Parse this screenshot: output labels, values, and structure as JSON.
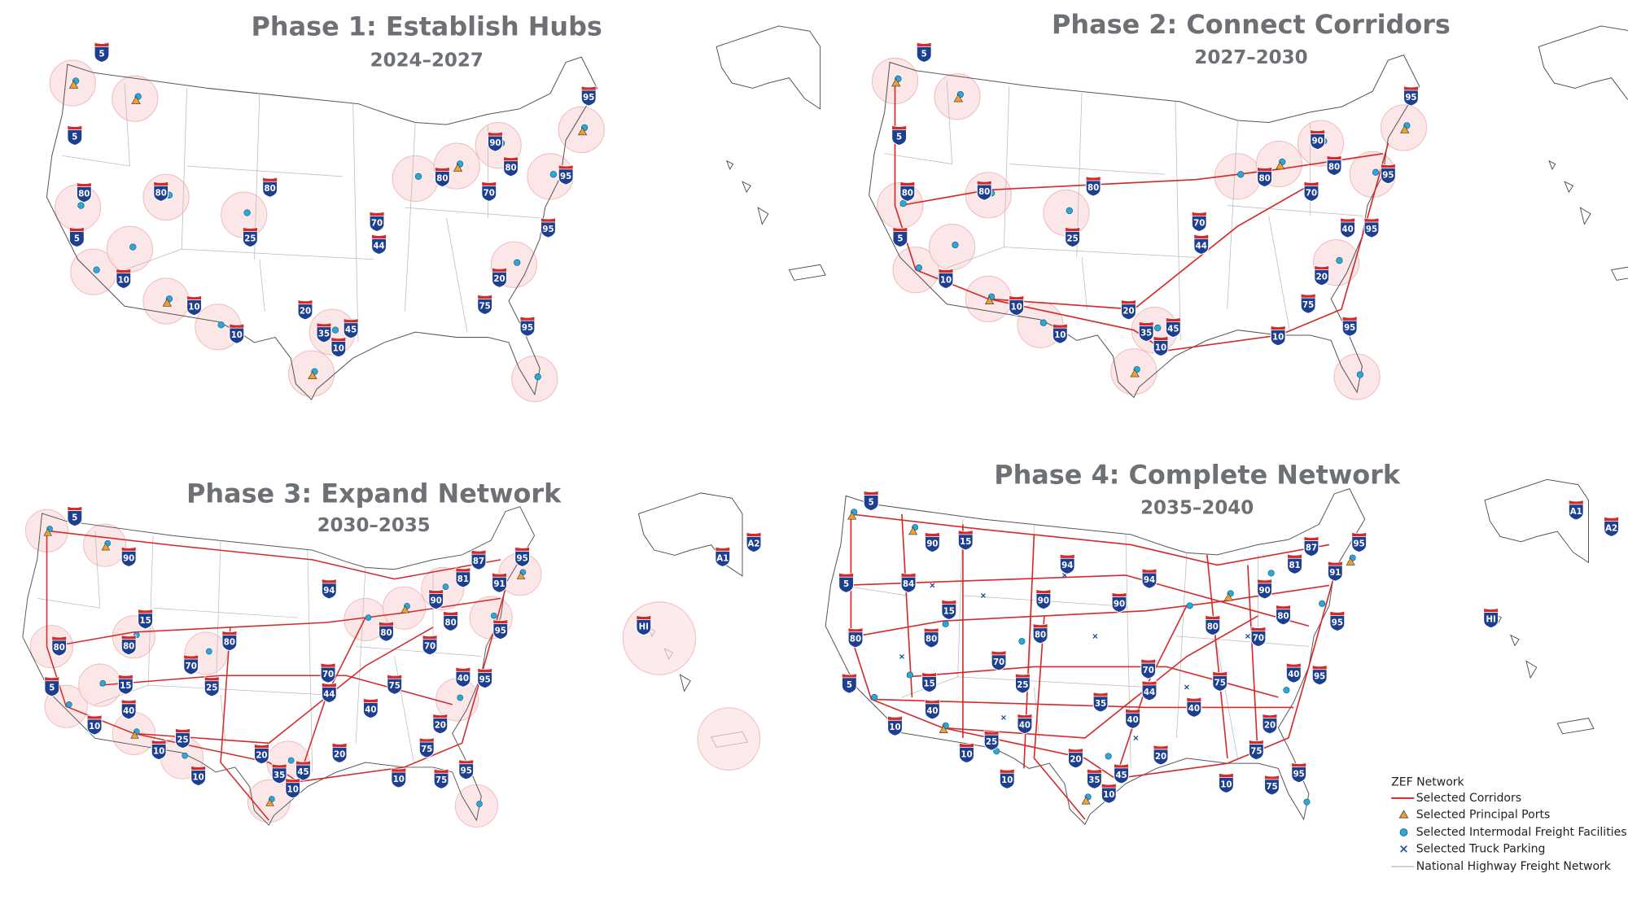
{
  "phases": [
    {
      "title": "Phase 1: Establish Hubs",
      "years": "2024–2027",
      "shields": [
        "5",
        "5",
        "95",
        "90",
        "80",
        "80",
        "70",
        "95",
        "80",
        "80",
        "80",
        "5",
        "25",
        "70",
        "44",
        "95",
        "10",
        "20",
        "10",
        "75",
        "95",
        "10",
        "20",
        "35",
        "45",
        "10"
      ]
    },
    {
      "title": "Phase 2: Connect Corridors",
      "years": "2027–2030",
      "shields": [
        "5",
        "95",
        "5",
        "90",
        "80",
        "80",
        "70",
        "95",
        "80",
        "80",
        "80",
        "5",
        "25",
        "70",
        "44",
        "40",
        "95",
        "10",
        "20",
        "10",
        "75",
        "95",
        "10",
        "20",
        "35",
        "45",
        "10",
        "10"
      ]
    },
    {
      "title": "Phase 3: Expand Network",
      "years": "2030–2035",
      "shields": [
        "5",
        "90",
        "87",
        "95",
        "81",
        "91",
        "94",
        "90",
        "80",
        "95",
        "15",
        "80",
        "80",
        "80",
        "70",
        "70",
        "80",
        "70",
        "5",
        "15",
        "25",
        "44",
        "75",
        "40",
        "40",
        "40",
        "95",
        "10",
        "20",
        "25",
        "10",
        "75",
        "20",
        "20",
        "35",
        "45",
        "10",
        "10",
        "95",
        "10",
        "75",
        "A1",
        "A2",
        "HI"
      ]
    },
    {
      "title": "Phase 4: Complete Network",
      "years": "2035–2040",
      "shields": [
        "5",
        "90",
        "15",
        "94",
        "87",
        "95",
        "81",
        "91",
        "94",
        "84",
        "5",
        "90",
        "90",
        "90",
        "15",
        "80",
        "80",
        "80",
        "95",
        "80",
        "80",
        "70",
        "70",
        "70",
        "25",
        "15",
        "5",
        "44",
        "75",
        "40",
        "95",
        "35",
        "40",
        "40",
        "40",
        "20",
        "10",
        "40",
        "25",
        "10",
        "20",
        "20",
        "75",
        "95",
        "35",
        "45",
        "10",
        "10",
        "75",
        "10",
        "A1",
        "A2",
        "HI"
      ]
    }
  ],
  "legend": {
    "title": "ZEF Network",
    "items": [
      "Selected Corridors",
      "Selected Principal Ports",
      "Selected Intermodal Freight Facilities",
      "Selected Truck Parking",
      "National Highway Freight Network"
    ]
  }
}
